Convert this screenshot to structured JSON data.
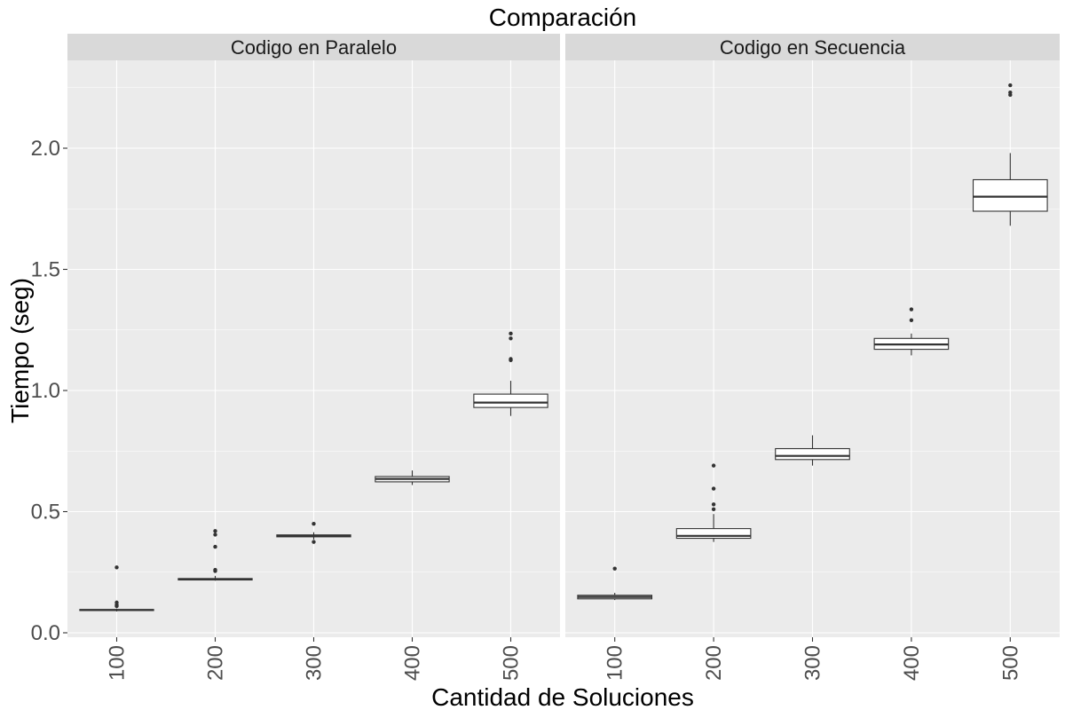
{
  "chart_data": {
    "type": "boxplot",
    "title": "Comparación",
    "xlabel": "Cantidad de Soluciones",
    "ylabel": "Tiempo (seg)",
    "categories": [
      "100",
      "200",
      "300",
      "400",
      "500"
    ],
    "y_ticks": [
      "0.0",
      "0.5",
      "1.0",
      "1.5",
      "2.0"
    ],
    "ylim": [
      0,
      2.3
    ],
    "x_tick_rotation": "vertical",
    "grid": true,
    "panels": [
      {
        "name": "Codigo en Paralelo",
        "boxes": [
          {
            "category": "100",
            "min": 0.088,
            "q1": 0.092,
            "median": 0.094,
            "q3": 0.096,
            "max": 0.1,
            "outliers": [
              0.11,
              0.115,
              0.125,
              0.27
            ]
          },
          {
            "category": "200",
            "min": 0.215,
            "q1": 0.218,
            "median": 0.221,
            "q3": 0.224,
            "max": 0.235,
            "outliers": [
              0.255,
              0.26,
              0.355,
              0.405,
              0.42
            ]
          },
          {
            "category": "300",
            "min": 0.385,
            "q1": 0.396,
            "median": 0.4,
            "q3": 0.404,
            "max": 0.415,
            "outliers": [
              0.375,
              0.45
            ]
          },
          {
            "category": "400",
            "min": 0.61,
            "q1": 0.623,
            "median": 0.635,
            "q3": 0.645,
            "max": 0.67,
            "outliers": []
          },
          {
            "category": "500",
            "min": 0.895,
            "q1": 0.93,
            "median": 0.95,
            "q3": 0.985,
            "max": 1.04,
            "outliers": [
              1.125,
              1.13,
              1.215,
              1.235
            ]
          }
        ]
      },
      {
        "name": "Codigo en Secuencia",
        "boxes": [
          {
            "category": "100",
            "min": 0.135,
            "q1": 0.14,
            "median": 0.148,
            "q3": 0.155,
            "max": 0.165,
            "outliers": [
              0.265
            ]
          },
          {
            "category": "200",
            "min": 0.375,
            "q1": 0.39,
            "median": 0.4,
            "q3": 0.43,
            "max": 0.49,
            "outliers": [
              0.51,
              0.53,
              0.595,
              0.69
            ]
          },
          {
            "category": "300",
            "min": 0.69,
            "q1": 0.715,
            "median": 0.73,
            "q3": 0.76,
            "max": 0.815,
            "outliers": []
          },
          {
            "category": "400",
            "min": 1.145,
            "q1": 1.17,
            "median": 1.19,
            "q3": 1.215,
            "max": 1.235,
            "outliers": [
              1.29,
              1.335
            ]
          },
          {
            "category": "500",
            "min": 1.68,
            "q1": 1.74,
            "median": 1.8,
            "q3": 1.87,
            "max": 1.98,
            "outliers": [
              2.22,
              2.23,
              2.26
            ]
          }
        ]
      }
    ],
    "colors": {
      "panel_background": "#EBEBEB",
      "strip_background": "#D9D9D9",
      "grid": "#FFFFFF",
      "box_fill": "#FFFFFF",
      "box_line": "#333333",
      "tick_text": "#4D4D4D"
    }
  }
}
